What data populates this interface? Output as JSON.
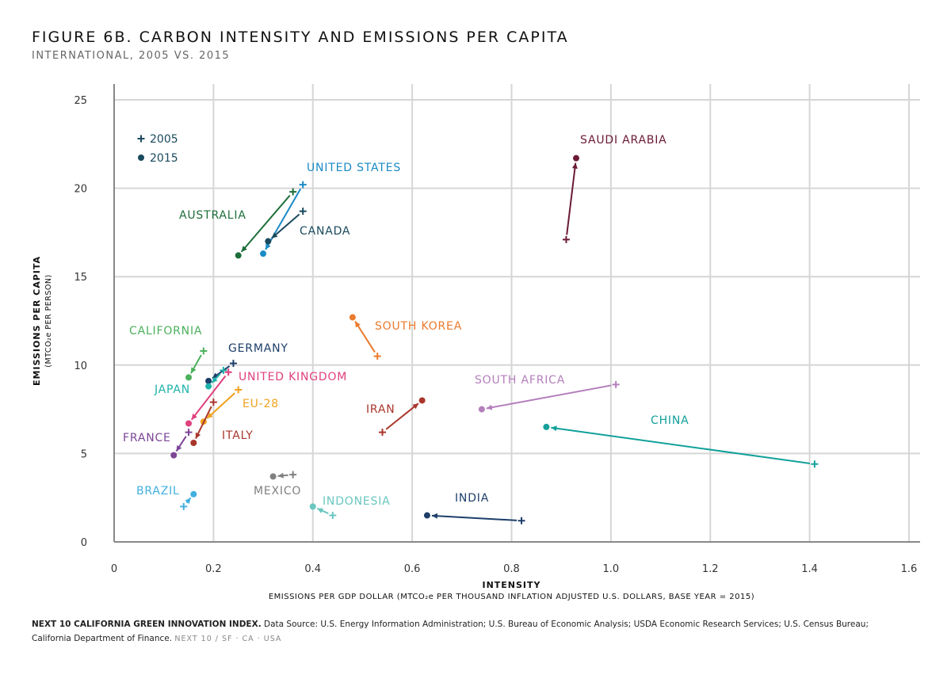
{
  "header": {
    "title": "FIGURE 6B. CARBON INTENSITY AND EMISSIONS PER CAPITA",
    "subtitle": "INTERNATIONAL, 2005 VS. 2015"
  },
  "footer": {
    "source_bold": "NEXT 10 CALIFORNIA GREEN INNOVATION INDEX.",
    "source_text": " Data Source: U.S. Energy Information Administration; U.S. Bureau of Economic Analysis; USDA Economic Research Services; U.S. Census Bureau;",
    "source_text2": "California Department of Finance.",
    "brand": "NEXT 10  /  SF · CA · USA"
  },
  "chart_data": {
    "type": "scatter",
    "xlabel": "INTENSITY",
    "xlabel_sub": "EMISSIONS PER GDP DOLLAR (MTCO₂e PER THOUSAND INFLATION ADJUSTED U.S. DOLLARS, BASE YEAR = 2015)",
    "ylabel": "EMISSIONS PER CAPITA",
    "ylabel_sub": "(MTCO₂e PER PERSON)",
    "xlim": [
      0,
      1.6
    ],
    "ylim": [
      0,
      25
    ],
    "xticks": [
      "0",
      "0.2",
      "0.4",
      "0.6",
      "0.8",
      "1.0",
      "1.2",
      "1.4",
      "1.6"
    ],
    "yticks": [
      "0",
      "5",
      "10",
      "15",
      "20",
      "25"
    ],
    "grid": true,
    "legend_position": "top-left",
    "legend": [
      {
        "marker": "plus",
        "label": "2005"
      },
      {
        "marker": "dot",
        "label": "2015"
      }
    ],
    "series": [
      {
        "name": "SAUDI ARABIA",
        "color": "#6b1a36",
        "x2005": 0.91,
        "y2005": 17.1,
        "x2015": 0.93,
        "y2015": 21.7
      },
      {
        "name": "UNITED STATES",
        "color": "#1a8ac6",
        "x2005": 0.38,
        "y2005": 20.2,
        "x2015": 0.3,
        "y2015": 16.3
      },
      {
        "name": "AUSTRALIA",
        "color": "#1d6e3a",
        "x2005": 0.36,
        "y2005": 19.8,
        "x2015": 0.25,
        "y2015": 16.2
      },
      {
        "name": "CANADA",
        "color": "#1a4a5e",
        "x2005": 0.38,
        "y2005": 18.7,
        "x2015": 0.31,
        "y2015": 17.0
      },
      {
        "name": "SOUTH KOREA",
        "color": "#ea7a2c",
        "x2005": 0.53,
        "y2005": 10.5,
        "x2015": 0.48,
        "y2015": 12.7
      },
      {
        "name": "CALIFORNIA",
        "color": "#4cb05c",
        "x2005": 0.18,
        "y2005": 10.8,
        "x2015": 0.15,
        "y2015": 9.3
      },
      {
        "name": "GERMANY",
        "color": "#1d3e6a",
        "x2005": 0.24,
        "y2005": 10.1,
        "x2015": 0.19,
        "y2015": 9.1
      },
      {
        "name": "JAPAN",
        "color": "#1fb2aa",
        "x2005": 0.22,
        "y2005": 9.7,
        "x2015": 0.19,
        "y2015": 8.8
      },
      {
        "name": "UNITED KINGDOM",
        "color": "#e0407e",
        "x2005": 0.23,
        "y2005": 9.6,
        "x2015": 0.15,
        "y2015": 6.7
      },
      {
        "name": "EU-28",
        "color": "#f0a11e",
        "x2005": 0.25,
        "y2005": 8.6,
        "x2015": 0.18,
        "y2015": 6.8
      },
      {
        "name": "ITALY",
        "color": "#a9362c",
        "x2005": 0.2,
        "y2005": 7.9,
        "x2015": 0.16,
        "y2015": 5.6
      },
      {
        "name": "FRANCE",
        "color": "#7c4597",
        "x2005": 0.15,
        "y2005": 6.2,
        "x2015": 0.12,
        "y2015": 4.9
      },
      {
        "name": "IRAN",
        "color": "#a9362c",
        "x2005": 0.54,
        "y2005": 6.2,
        "x2015": 0.62,
        "y2015": 8.0
      },
      {
        "name": "SOUTH AFRICA",
        "color": "#b47fbc",
        "x2005": 1.01,
        "y2005": 8.9,
        "x2015": 0.74,
        "y2015": 7.5
      },
      {
        "name": "CHINA",
        "color": "#12a09a",
        "x2005": 1.41,
        "y2005": 4.4,
        "x2015": 0.87,
        "y2015": 6.5
      },
      {
        "name": "MEXICO",
        "color": "#808080",
        "x2005": 0.36,
        "y2005": 3.8,
        "x2015": 0.32,
        "y2015": 3.7
      },
      {
        "name": "BRAZIL",
        "color": "#41b0df",
        "x2005": 0.14,
        "y2005": 2.0,
        "x2015": 0.16,
        "y2015": 2.7
      },
      {
        "name": "INDONESIA",
        "color": "#6ac7c0",
        "x2005": 0.44,
        "y2005": 1.5,
        "x2015": 0.4,
        "y2015": 2.0
      },
      {
        "name": "INDIA",
        "color": "#1d3e6a",
        "x2005": 0.82,
        "y2005": 1.2,
        "x2015": 0.63,
        "y2015": 1.5
      }
    ]
  }
}
